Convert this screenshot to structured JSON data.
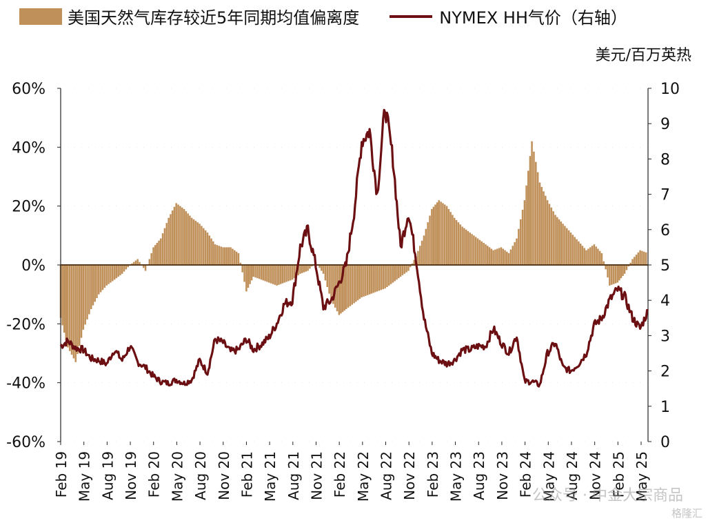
{
  "legend": {
    "bars_label": "美国天然气库存较近5年同期均值偏离度",
    "line_label": "NYMEX HH气价（右轴）"
  },
  "right_axis_unit": "美元/百万英热",
  "watermark": "公众号 · 中金大宗商品",
  "watermark_small": "格隆汇",
  "colors": {
    "bars": "#C0905A",
    "line": "#6B0F12",
    "zero_line": "#5A3A1A"
  },
  "chart_data": {
    "type": "bar",
    "x_ticks": [
      "Feb 19",
      "May 19",
      "Aug 19",
      "Nov 19",
      "Feb 20",
      "May 20",
      "Aug 20",
      "Nov 20",
      "Feb 21",
      "May 21",
      "Aug 21",
      "Nov 21",
      "Feb 22",
      "May 22",
      "Aug 22",
      "Nov 22",
      "Feb 23",
      "May 23",
      "Aug 23",
      "Nov 23",
      "Feb 24",
      "May 24",
      "Aug 24",
      "Nov 24",
      "Feb 25",
      "May 25"
    ],
    "y_left": {
      "ticks": [
        "60%",
        "40%",
        "20%",
        "0%",
        "-20%",
        "-40%",
        "-60%"
      ],
      "ylim": [
        -60,
        60
      ]
    },
    "y_right": {
      "ticks": [
        "10",
        "9",
        "8",
        "7",
        "6",
        "5",
        "4",
        "3",
        "2",
        "1",
        "0"
      ],
      "ylim": [
        0,
        10
      ]
    },
    "series": [
      {
        "name": "美国天然气库存较近5年同期均值偏离度",
        "type": "bar",
        "axis": "left",
        "x": [
          "2019-02",
          "2019-03",
          "2019-04",
          "2019-05",
          "2019-06",
          "2019-07",
          "2019-08",
          "2019-09",
          "2019-10",
          "2019-11",
          "2019-12",
          "2020-01",
          "2020-02",
          "2020-03",
          "2020-04",
          "2020-05",
          "2020-06",
          "2020-07",
          "2020-08",
          "2020-09",
          "2020-10",
          "2020-11",
          "2020-12",
          "2021-01",
          "2021-02",
          "2021-03",
          "2021-04",
          "2021-05",
          "2021-06",
          "2021-07",
          "2021-08",
          "2021-09",
          "2021-10",
          "2021-11",
          "2021-12",
          "2022-01",
          "2022-02",
          "2022-03",
          "2022-04",
          "2022-05",
          "2022-06",
          "2022-07",
          "2022-08",
          "2022-09",
          "2022-10",
          "2022-11",
          "2022-12",
          "2023-01",
          "2023-02",
          "2023-03",
          "2023-04",
          "2023-05",
          "2023-06",
          "2023-07",
          "2023-08",
          "2023-09",
          "2023-10",
          "2023-11",
          "2023-12",
          "2024-01",
          "2024-02",
          "2024-03",
          "2024-04",
          "2024-05",
          "2024-06",
          "2024-07",
          "2024-08",
          "2024-09",
          "2024-10",
          "2024-11",
          "2024-12",
          "2025-01",
          "2025-02",
          "2025-03",
          "2025-04",
          "2025-05",
          "2025-06"
        ],
        "values": [
          -18,
          -28,
          -33,
          -22,
          -15,
          -10,
          -7,
          -5,
          -3,
          0,
          2,
          -2,
          6,
          9,
          16,
          21,
          19,
          16,
          14,
          11,
          7,
          6,
          6,
          4,
          -9,
          -4,
          -5,
          -6,
          -7,
          -6,
          -5,
          -3,
          -2,
          1,
          -3,
          -12,
          -17,
          -15,
          -13,
          -11,
          -10,
          -9,
          -8,
          -6,
          -4,
          -2,
          3,
          10,
          19,
          22,
          20,
          16,
          13,
          11,
          9,
          7,
          5,
          6,
          4,
          9,
          22,
          42,
          28,
          22,
          17,
          14,
          11,
          8,
          5,
          7,
          4,
          -7,
          -6,
          -3,
          2,
          5,
          4
        ]
      },
      {
        "name": "NYMEX HH气价（右轴）",
        "type": "line",
        "axis": "right",
        "x": [
          "2019-02",
          "2019-03",
          "2019-04",
          "2019-05",
          "2019-06",
          "2019-07",
          "2019-08",
          "2019-09",
          "2019-10",
          "2019-11",
          "2019-12",
          "2020-01",
          "2020-02",
          "2020-03",
          "2020-04",
          "2020-05",
          "2020-06",
          "2020-07",
          "2020-08",
          "2020-09",
          "2020-10",
          "2020-11",
          "2020-12",
          "2021-01",
          "2021-02",
          "2021-03",
          "2021-04",
          "2021-05",
          "2021-06",
          "2021-07",
          "2021-08",
          "2021-09",
          "2021-10",
          "2021-11",
          "2021-12",
          "2022-01",
          "2022-02",
          "2022-03",
          "2022-04",
          "2022-05",
          "2022-06",
          "2022-07",
          "2022-08",
          "2022-09",
          "2022-10",
          "2022-11",
          "2022-12",
          "2023-01",
          "2023-02",
          "2023-03",
          "2023-04",
          "2023-05",
          "2023-06",
          "2023-07",
          "2023-08",
          "2023-09",
          "2023-10",
          "2023-11",
          "2023-12",
          "2024-01",
          "2024-02",
          "2024-03",
          "2024-04",
          "2024-05",
          "2024-06",
          "2024-07",
          "2024-08",
          "2024-09",
          "2024-10",
          "2024-11",
          "2024-12",
          "2025-01",
          "2025-02",
          "2025-03",
          "2025-04",
          "2025-05",
          "2025-06"
        ],
        "values": [
          2.7,
          2.85,
          2.65,
          2.6,
          2.35,
          2.3,
          2.2,
          2.6,
          2.3,
          2.7,
          2.25,
          2.1,
          1.85,
          1.7,
          1.65,
          1.75,
          1.65,
          1.75,
          2.3,
          1.95,
          2.9,
          2.8,
          2.55,
          2.6,
          2.9,
          2.6,
          2.75,
          2.95,
          3.35,
          3.9,
          4.0,
          5.5,
          6.0,
          5.0,
          3.8,
          4.0,
          4.5,
          5.0,
          6.5,
          8.5,
          8.8,
          7.0,
          9.5,
          8.0,
          5.5,
          6.5,
          5.2,
          3.5,
          2.5,
          2.3,
          2.2,
          2.3,
          2.6,
          2.6,
          2.7,
          2.7,
          3.2,
          2.8,
          2.5,
          3.0,
          1.7,
          1.7,
          1.6,
          2.5,
          2.8,
          2.1,
          2.0,
          2.2,
          2.5,
          3.3,
          3.5,
          4.0,
          4.3,
          4.1,
          3.5,
          3.2,
          3.7
        ]
      }
    ]
  }
}
